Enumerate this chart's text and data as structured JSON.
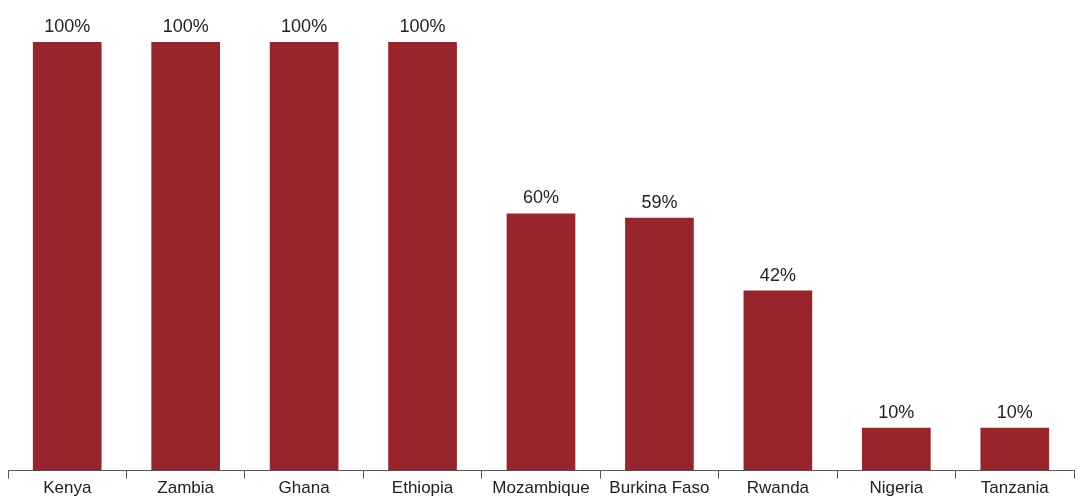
{
  "chart_data": {
    "type": "bar",
    "categories": [
      "Kenya",
      "Zambia",
      "Ghana",
      "Ethiopia",
      "Mozambique",
      "Burkina Faso",
      "Rwanda",
      "Nigeria",
      "Tanzania"
    ],
    "values": [
      100,
      100,
      100,
      100,
      60,
      59,
      42,
      10,
      10
    ],
    "value_labels": [
      "100%",
      "100%",
      "100%",
      "100%",
      "60%",
      "59%",
      "42%",
      "10%",
      "10%"
    ],
    "color": "#98252b",
    "grid": false,
    "legend": false
  }
}
